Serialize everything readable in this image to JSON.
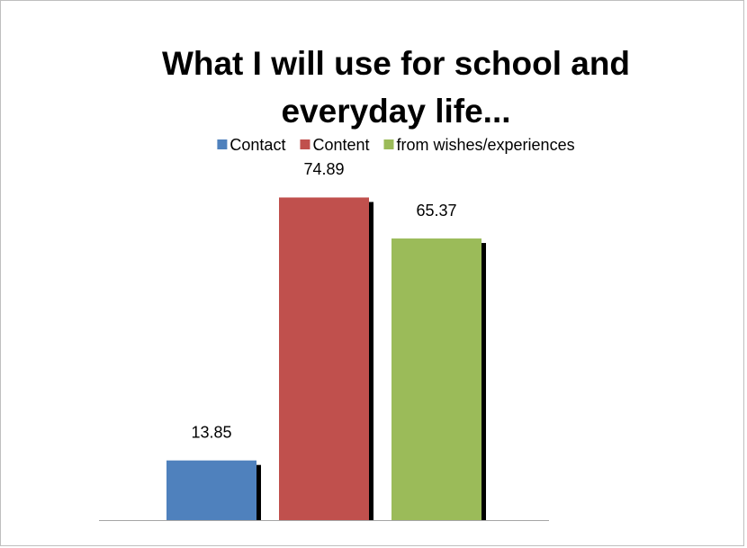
{
  "chart_data": {
    "type": "bar",
    "title": "What I will use for school and everyday life...",
    "categories": [
      null
    ],
    "series": [
      {
        "name": "Contact",
        "color": "#4f81bd",
        "values": [
          13.85
        ]
      },
      {
        "name": "Content",
        "color": "#c0504d",
        "values": [
          74.89
        ]
      },
      {
        "name": "from wishes/experiences",
        "color": "#9bbb59",
        "values": [
          65.37
        ]
      }
    ],
    "ylim": [
      0,
      80
    ],
    "legend": "top"
  }
}
